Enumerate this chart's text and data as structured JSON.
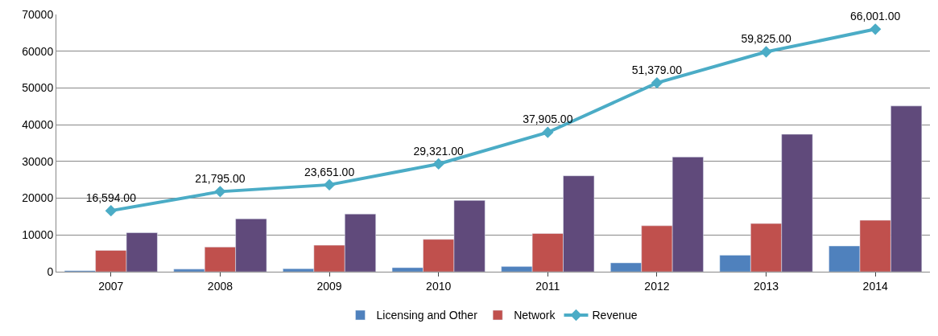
{
  "chart_data": {
    "type": "bar",
    "categories": [
      "2007",
      "2008",
      "2009",
      "2010",
      "2011",
      "2012",
      "2013",
      "2014"
    ],
    "series": [
      {
        "name": "Licensing and Other",
        "color": "#4f81bd",
        "values": [
          300,
          700,
          800,
          1100,
          1400,
          2400,
          4500,
          7000
        ]
      },
      {
        "name": "Network",
        "color": "#c0504d",
        "values": [
          5800,
          6700,
          7200,
          8800,
          10400,
          12500,
          13100,
          14000
        ]
      },
      {
        "color": "#604a7b",
        "values": [
          10600,
          14400,
          15700,
          19400,
          26100,
          31200,
          37400,
          45100
        ]
      },
      {
        "name": "Revenue",
        "type": "line",
        "color": "#4bacc6",
        "marker": "diamond",
        "values": [
          16594,
          21795,
          23651,
          29321,
          37905,
          51379,
          59825,
          66001
        ],
        "value_labels": [
          "16,594.00",
          "21,795.00",
          "23,651.00",
          "29,321.00",
          "37,905.00",
          "51,379.00",
          "59,825.00",
          "66,001.00"
        ]
      }
    ],
    "ylim": [
      0,
      70000
    ],
    "yticks": [
      0,
      10000,
      20000,
      30000,
      40000,
      50000,
      60000,
      70000
    ],
    "grid": "y",
    "legend": "bottom"
  }
}
